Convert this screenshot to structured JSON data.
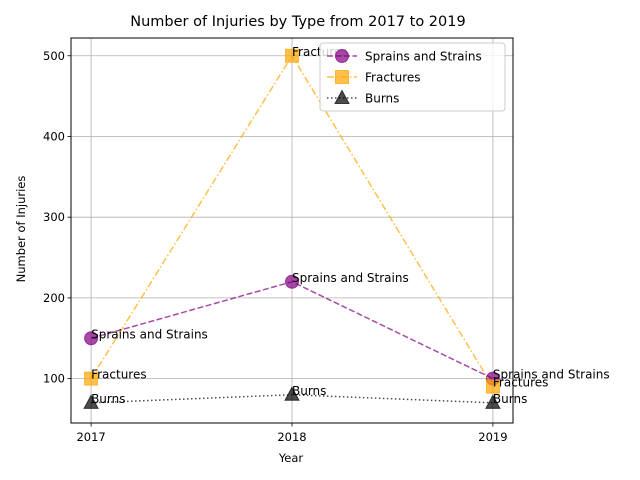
{
  "chart_data": {
    "type": "line",
    "title": "Number of Injuries by Type from 2017 to 2019",
    "xlabel": "Year",
    "ylabel": "Number of Injuries",
    "categories": [
      "2017",
      "2018",
      "2019"
    ],
    "x": [
      2017,
      2018,
      2019
    ],
    "xlim": [
      2016.9,
      2019.1
    ],
    "ylim": [
      45,
      522
    ],
    "yticks": [
      100,
      200,
      300,
      400,
      500
    ],
    "grid": true,
    "legend_position": "top-right",
    "series": [
      {
        "name": "Sprains and Strains",
        "values": [
          150,
          220,
          100
        ],
        "color": "#800080",
        "marker": "circle",
        "linestyle": "dashed"
      },
      {
        "name": "Fractures",
        "values": [
          100,
          500,
          90
        ],
        "color": "#FFA500",
        "marker": "square",
        "linestyle": "dashdot"
      },
      {
        "name": "Burns",
        "values": [
          70,
          80,
          70
        ],
        "color": "#000000",
        "marker": "triangle",
        "linestyle": "dotted"
      }
    ]
  }
}
